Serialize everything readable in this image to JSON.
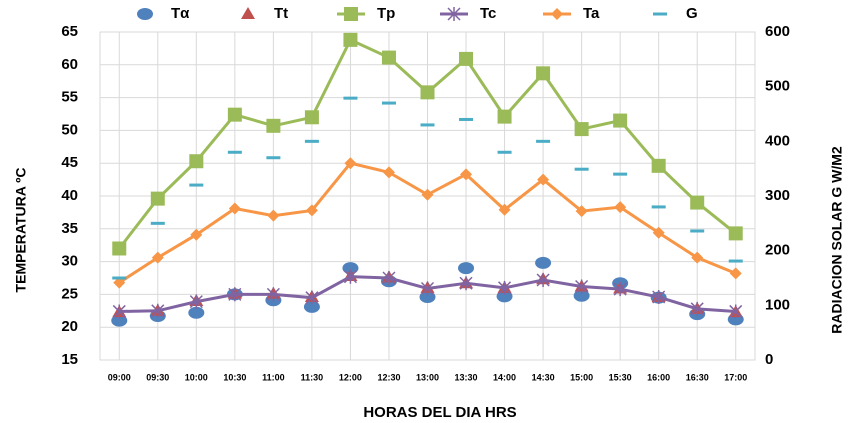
{
  "chart_data": {
    "type": "line",
    "xlabel": "HORAS DEL DIA   HRS",
    "ylabel": "TEMPERATURA ºC",
    "y2label": "RADIACION SOLAR G W/M2",
    "categories": [
      "09:00",
      "09:30",
      "10:00",
      "10:30",
      "11:00",
      "11:30",
      "12:00",
      "12:30",
      "13:00",
      "13:30",
      "14:00",
      "14:30",
      "15:00",
      "15:30",
      "16:00",
      "16:30",
      "17:00"
    ],
    "series": [
      {
        "name": "Tα",
        "color": "#4f81bd",
        "marker": "circle",
        "line": false,
        "values": [
          21,
          21.7,
          22.2,
          25,
          24.1,
          23.1,
          29,
          27,
          24.6,
          29,
          24.7,
          29.8,
          24.8,
          26.7,
          24.5,
          22,
          21.2
        ]
      },
      {
        "name": "Tt",
        "color": "#c0504d",
        "marker": "triangle",
        "line": false,
        "values": [
          22.3,
          22.5,
          24,
          25.1,
          25.1,
          24.6,
          27.8,
          27.6,
          26,
          26.7,
          26,
          27.3,
          26.2,
          25.9,
          24.6,
          22.8,
          22.3
        ]
      },
      {
        "name": "Tp",
        "color": "#9bbb59",
        "marker": "square",
        "line": true,
        "values": [
          32,
          39.6,
          45.3,
          52.4,
          50.7,
          52,
          63.8,
          61.1,
          55.8,
          60.9,
          52.1,
          58.7,
          50.2,
          51.5,
          44.6,
          39,
          34.3
        ]
      },
      {
        "name": "Tc",
        "color": "#8064a2",
        "marker": "star",
        "line": true,
        "values": [
          22.4,
          22.5,
          23.9,
          25,
          25,
          24.5,
          27.7,
          27.5,
          25.9,
          26.7,
          26,
          27.2,
          26.2,
          25.8,
          24.6,
          22.8,
          22.4
        ]
      },
      {
        "name": "Ta",
        "color": "#f79646",
        "marker": "diamond",
        "line": true,
        "values": [
          26.8,
          30.6,
          34.1,
          38.1,
          37,
          37.8,
          45,
          43.6,
          40.2,
          43.3,
          37.9,
          42.5,
          37.7,
          38.3,
          34.4,
          30.6,
          28.2
        ]
      },
      {
        "name": "G",
        "color": "#4bacc6",
        "marker": "dash",
        "line": false,
        "axis": "y2",
        "values": [
          150,
          250,
          320,
          380,
          370,
          400,
          479,
          470,
          430,
          440,
          380,
          400,
          349,
          340,
          280,
          236,
          181
        ]
      }
    ],
    "ylim": [
      15,
      65
    ],
    "yticks": [
      15,
      20,
      25,
      30,
      35,
      40,
      45,
      50,
      55,
      60,
      65
    ],
    "y2lim": [
      0,
      600
    ],
    "y2ticks": [
      0,
      100,
      200,
      300,
      400,
      500,
      600
    ],
    "grid": true,
    "legend": "top"
  }
}
